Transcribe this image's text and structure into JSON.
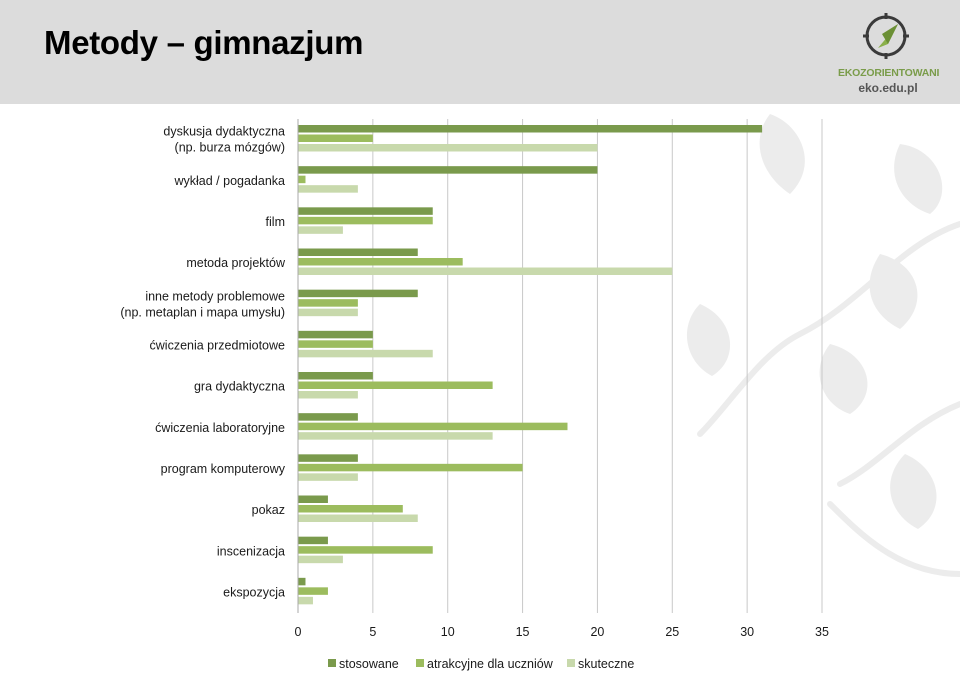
{
  "slide": {
    "title": "Metody – gimnazjum"
  },
  "logo": {
    "name": "EKOZORIENTOWANI",
    "url": "eko.edu.pl"
  },
  "colors": {
    "header_bg": "#dcdcdc",
    "series": [
      "#7a9a4c",
      "#9cbc5e",
      "#c8d9ac"
    ]
  },
  "chart_data": {
    "type": "bar",
    "orientation": "horizontal",
    "categories": [
      [
        "dyskusja dydaktyczna",
        "(np. burza mózgów)"
      ],
      [
        "wykład / pogadanka"
      ],
      [
        "film"
      ],
      [
        "metoda projektów"
      ],
      [
        "inne metody problemowe",
        "(np. metaplan i mapa umysłu)"
      ],
      [
        "ćwiczenia przedmiotowe"
      ],
      [
        "gra dydaktyczna"
      ],
      [
        "ćwiczenia laboratoryjne"
      ],
      [
        "program komputerowy"
      ],
      [
        "pokaz"
      ],
      [
        "inscenizacja"
      ],
      [
        "ekspozycja"
      ]
    ],
    "series": [
      {
        "name": "stosowane",
        "values": [
          31,
          20,
          9,
          8,
          8,
          5,
          5,
          4,
          4,
          2,
          2,
          0.5
        ]
      },
      {
        "name": "atrakcyjne dla uczniów",
        "values": [
          5,
          0.5,
          9,
          11,
          4,
          5,
          13,
          18,
          15,
          7,
          9,
          2
        ]
      },
      {
        "name": "skuteczne",
        "values": [
          20,
          4,
          3,
          25,
          4,
          9,
          4,
          13,
          4,
          8,
          3,
          1
        ]
      }
    ],
    "xlim": [
      0,
      35
    ],
    "xticks": [
      0,
      5,
      10,
      15,
      20,
      25,
      30,
      35
    ],
    "grid": true,
    "legend": "bottom",
    "title": ""
  }
}
